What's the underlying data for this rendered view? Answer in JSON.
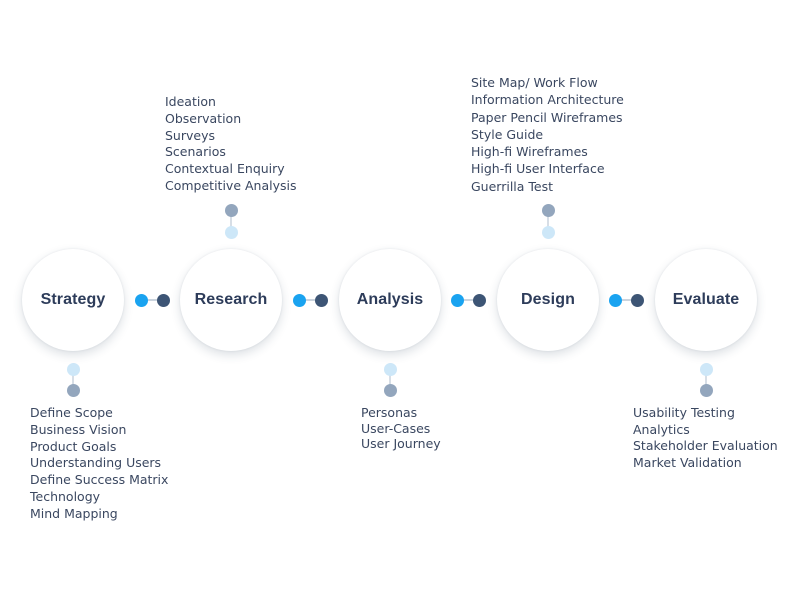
{
  "colors": {
    "connector_light": "#1aa3f0",
    "connector_dark": "#3d5575",
    "stem_light": "#cde7f8",
    "stem_mid": "#93a6bd"
  },
  "stages": [
    {
      "label": "Strategy"
    },
    {
      "label": "Research"
    },
    {
      "label": "Analysis"
    },
    {
      "label": "Design"
    },
    {
      "label": "Evaluate"
    }
  ],
  "tasks": {
    "strategy": [
      "Define Scope",
      "Business Vision",
      "Product Goals",
      "Understanding Users",
      "Define Success Matrix",
      "Technology",
      "Mind Mapping"
    ],
    "research": [
      "Ideation",
      "Observation",
      "Surveys",
      "Scenarios",
      "Contextual Enquiry",
      "Competitive Analysis"
    ],
    "analysis": [
      "Personas",
      "User-Cases",
      "User Journey"
    ],
    "design": [
      "Site Map/ Work Flow",
      "Information Architecture",
      "Paper Pencil Wireframes",
      "Style Guide",
      "High-fi Wireframes",
      "High-fi User Interface",
      "Guerrilla Test"
    ],
    "evaluate": [
      "Usability Testing",
      "Analytics",
      "Stakeholder Evaluation",
      "Market Validation"
    ]
  }
}
